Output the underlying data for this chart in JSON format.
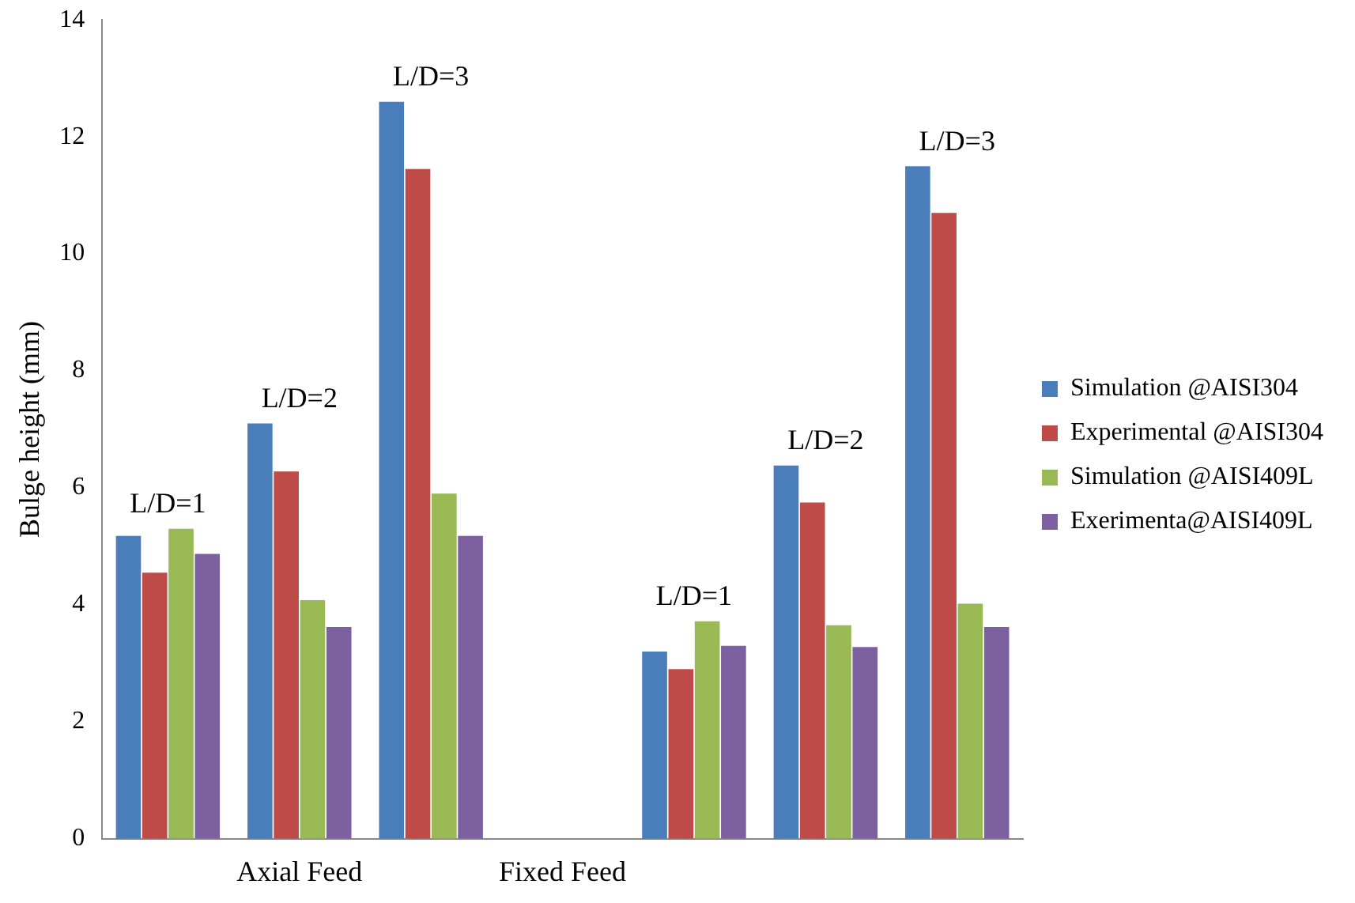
{
  "chart_data": {
    "type": "bar",
    "ylabel": "Bulge height (mm)",
    "categories": [
      null,
      "Axial Feed",
      null,
      "Fixed Feed",
      null,
      null,
      null
    ],
    "series": [
      {
        "name": "Simulation @AISI304",
        "color": "#4a7ebb",
        "values": [
          5.18,
          7.1,
          12.6,
          null,
          3.2,
          6.38,
          11.5
        ]
      },
      {
        "name": "Experimental @AISI304",
        "color": "#be4b48",
        "values": [
          4.55,
          6.28,
          11.45,
          null,
          2.9,
          5.75,
          10.7
        ]
      },
      {
        "name": "Simulation @AISI409L",
        "color": "#98b954",
        "values": [
          5.3,
          4.08,
          5.9,
          null,
          3.72,
          3.65,
          4.02
        ]
      },
      {
        "name": "Exerimenta@AISI409L",
        "color": "#7d60a0",
        "values": [
          4.87,
          3.62,
          5.18,
          null,
          3.3,
          3.28,
          3.62
        ]
      }
    ],
    "annotations": [
      "L/D=1",
      "L/D=2",
      "L/D=3",
      "L/D=1",
      "L/D=2",
      "L/D=3"
    ],
    "ylim": [
      0,
      14
    ],
    "yticks": [
      0,
      2,
      4,
      6,
      8,
      10,
      12,
      14
    ],
    "grid": false,
    "legend": "right"
  }
}
